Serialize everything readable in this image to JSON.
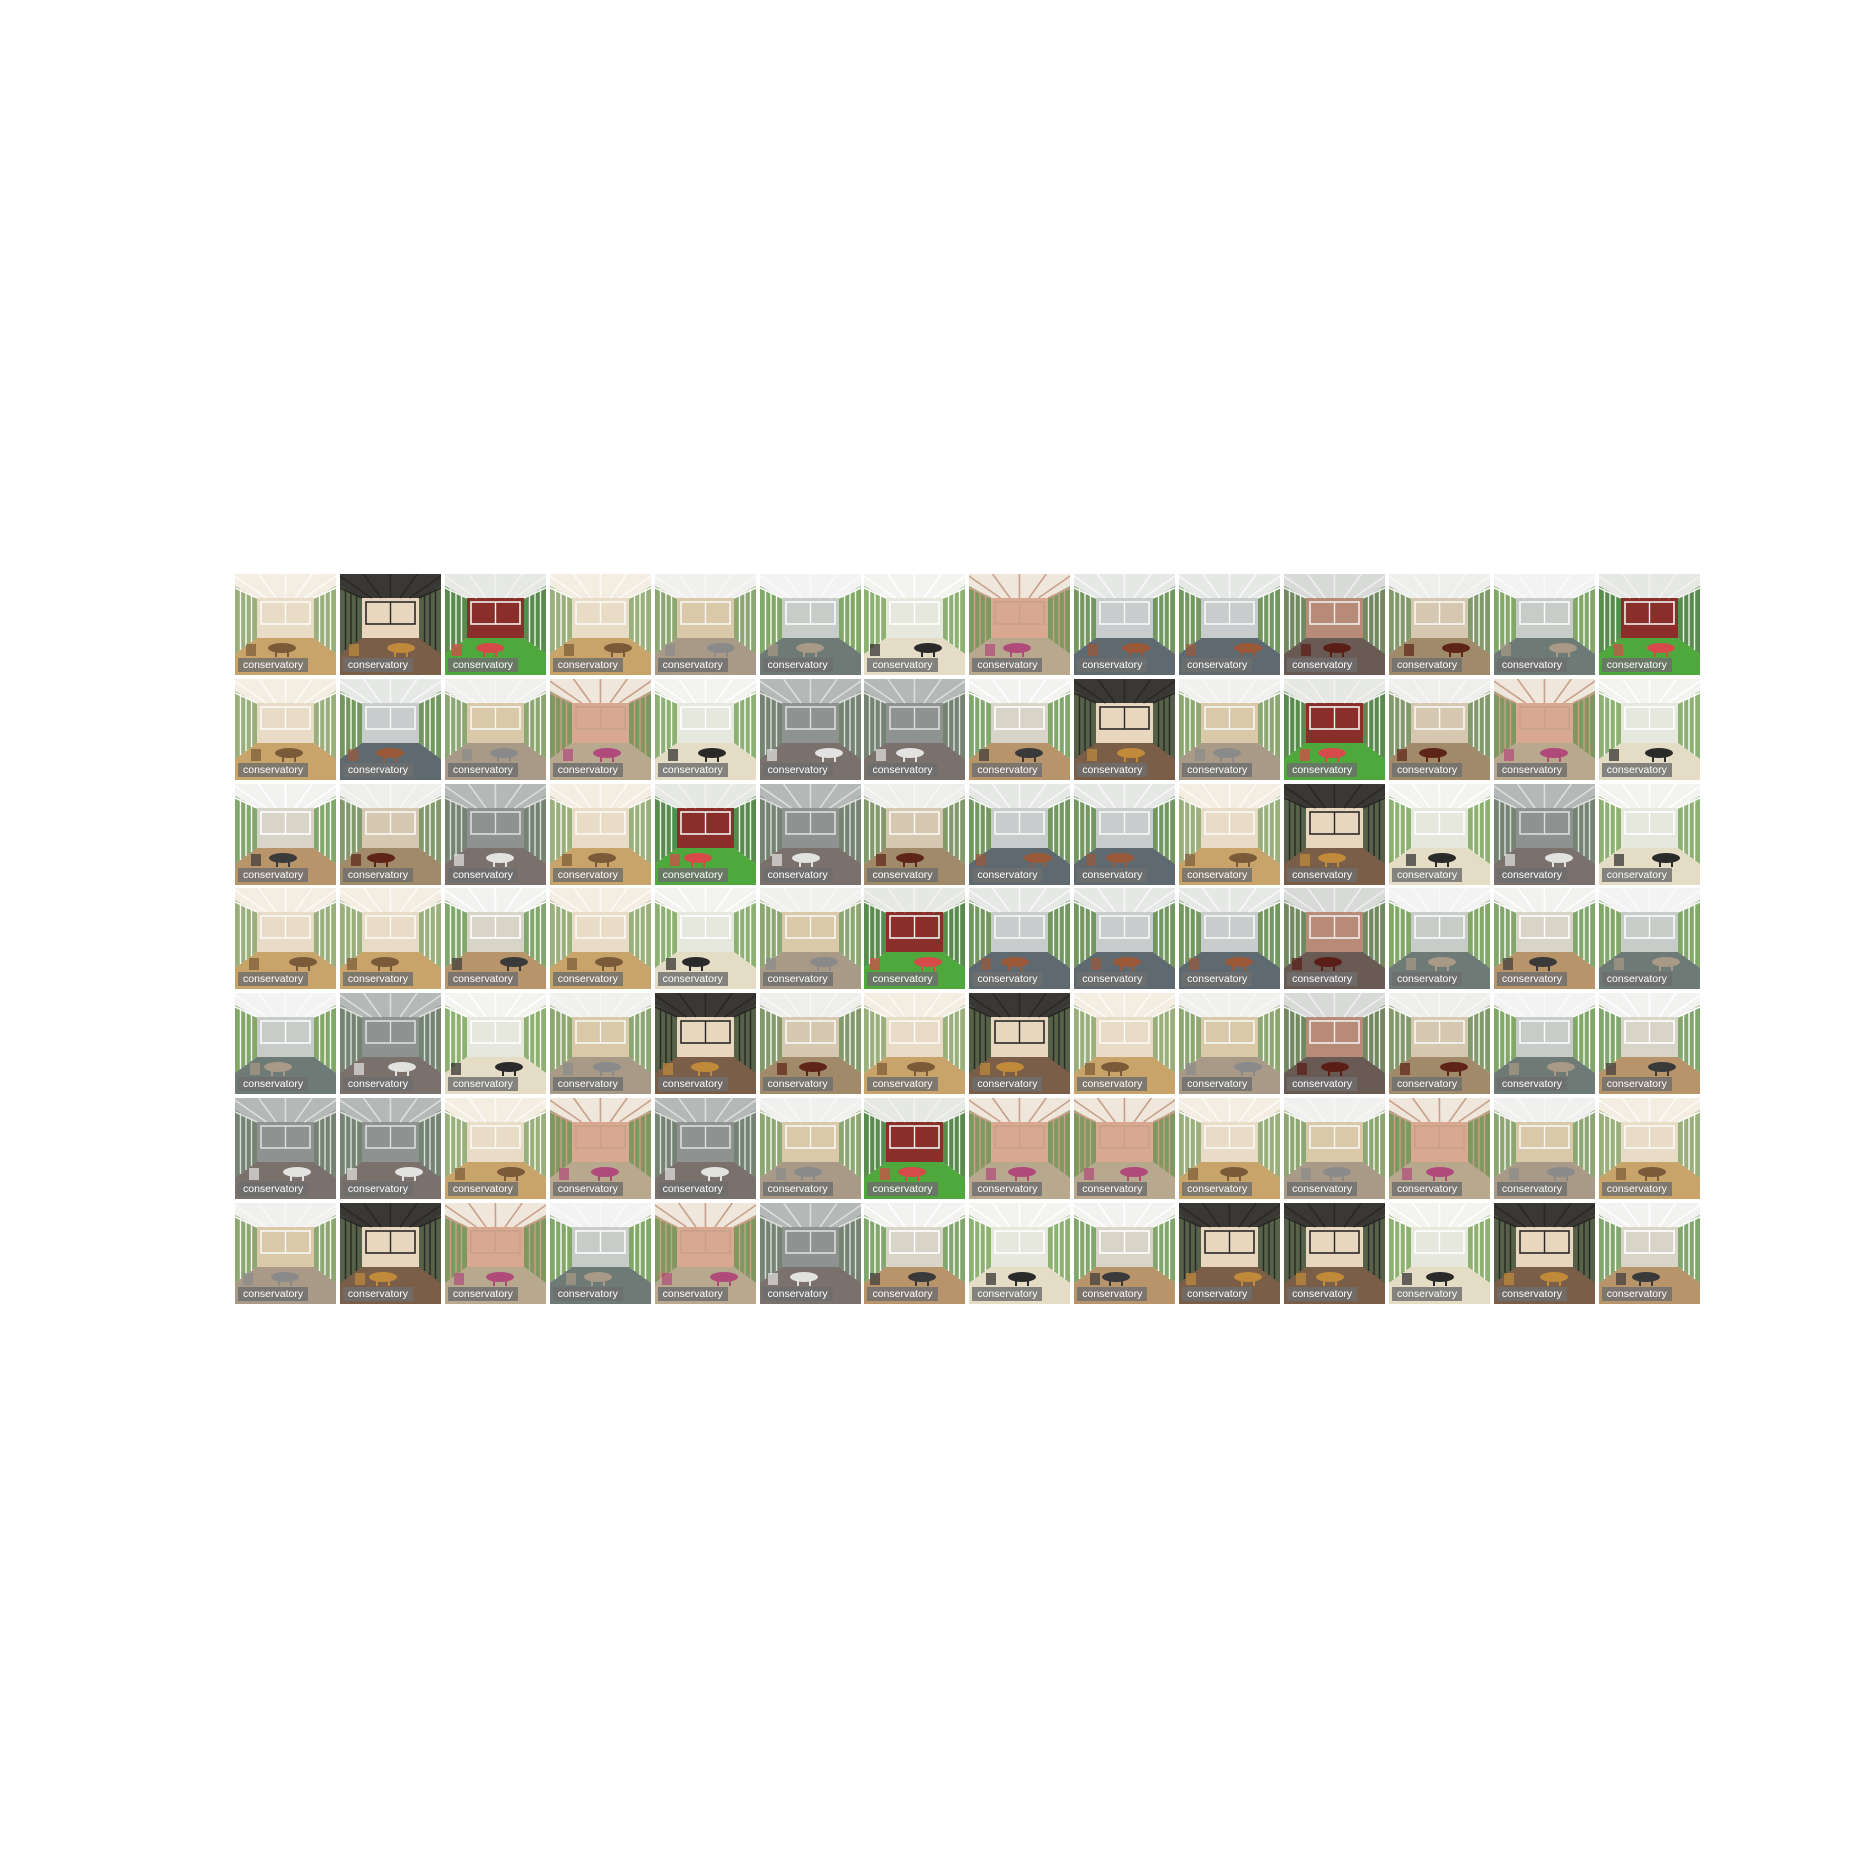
{
  "gallery": {
    "rows": 7,
    "columns": 14,
    "tile_label": "conservatory",
    "tile_variants": [
      [
        1,
        2,
        3,
        1,
        4,
        5,
        6,
        7,
        8,
        8,
        9,
        10,
        5,
        3
      ],
      [
        1,
        8,
        4,
        7,
        6,
        11,
        11,
        12,
        2,
        4,
        3,
        10,
        7,
        6
      ],
      [
        12,
        10,
        11,
        1,
        3,
        11,
        10,
        8,
        8,
        1,
        2,
        6,
        11,
        6
      ],
      [
        1,
        1,
        12,
        1,
        6,
        4,
        3,
        8,
        8,
        8,
        9,
        5,
        12,
        5
      ],
      [
        5,
        11,
        6,
        4,
        2,
        10,
        1,
        2,
        1,
        4,
        9,
        10,
        5,
        12
      ],
      [
        11,
        11,
        1,
        7,
        11,
        4,
        3,
        7,
        7,
        1,
        4,
        7,
        4,
        1
      ],
      [
        4,
        2,
        7,
        5,
        7,
        11,
        12,
        6,
        12,
        2,
        2,
        6,
        2,
        12
      ]
    ],
    "palette": {
      "1": {
        "sky": "#f4eee2",
        "frame": "#fbfaf6",
        "wall": "#e8dcc6",
        "floor": "#c9a46a",
        "accent": "#7a5a38",
        "green": "#8aa46a"
      },
      "2": {
        "sky": "#3a3835",
        "frame": "#2a2826",
        "wall": "#e9d6be",
        "floor": "#7a5e48",
        "accent": "#c08a3a",
        "green": "#5a6a4a"
      },
      "3": {
        "sky": "#e6e8e4",
        "frame": "#f2f2ee",
        "wall": "#8a2e2a",
        "floor": "#4ea83c",
        "accent": "#d64a4a",
        "green": "#3e7a32"
      },
      "4": {
        "sky": "#f0f0ee",
        "frame": "#f7f7f5",
        "wall": "#d9c9a8",
        "floor": "#a89a86",
        "accent": "#8a8a8a",
        "green": "#7a9a5a"
      },
      "5": {
        "sky": "#f2f3f2",
        "frame": "#fafafa",
        "wall": "#c8ccc8",
        "floor": "#6e7a76",
        "accent": "#a89a86",
        "green": "#6e9a50"
      },
      "6": {
        "sky": "#f3f4ef",
        "frame": "#ffffff",
        "wall": "#e6e8de",
        "floor": "#e4dcc4",
        "accent": "#2a2a2a",
        "green": "#7aa45a"
      },
      "7": {
        "sky": "#efe6dc",
        "frame": "#c9a08a",
        "wall": "#d9a890",
        "floor": "#b8a88e",
        "accent": "#b04a7a",
        "green": "#6a8a4a"
      },
      "8": {
        "sky": "#e6e8e6",
        "frame": "#f8f8f8",
        "wall": "#c8cccc",
        "floor": "#5e6a70",
        "accent": "#9a5a3a",
        "green": "#5e8a46"
      },
      "9": {
        "sky": "#d8dad8",
        "frame": "#eeeeee",
        "wall": "#b88a78",
        "floor": "#6a5a54",
        "accent": "#5a1e16",
        "green": "#5e7a4a"
      },
      "10": {
        "sky": "#eeeeec",
        "frame": "#f7f7f5",
        "wall": "#d6c8b0",
        "floor": "#a08a6a",
        "accent": "#5e2418",
        "green": "#6e8a56"
      },
      "11": {
        "sky": "#b4b8b6",
        "frame": "#dcdedc",
        "wall": "#8e9290",
        "floor": "#7a706c",
        "accent": "#e2e2e0",
        "green": "#6a7a66"
      },
      "12": {
        "sky": "#f2f2f0",
        "frame": "#ffffff",
        "wall": "#d8d4c8",
        "floor": "#b8946a",
        "accent": "#3a3a3a",
        "green": "#6e9a56"
      }
    }
  }
}
